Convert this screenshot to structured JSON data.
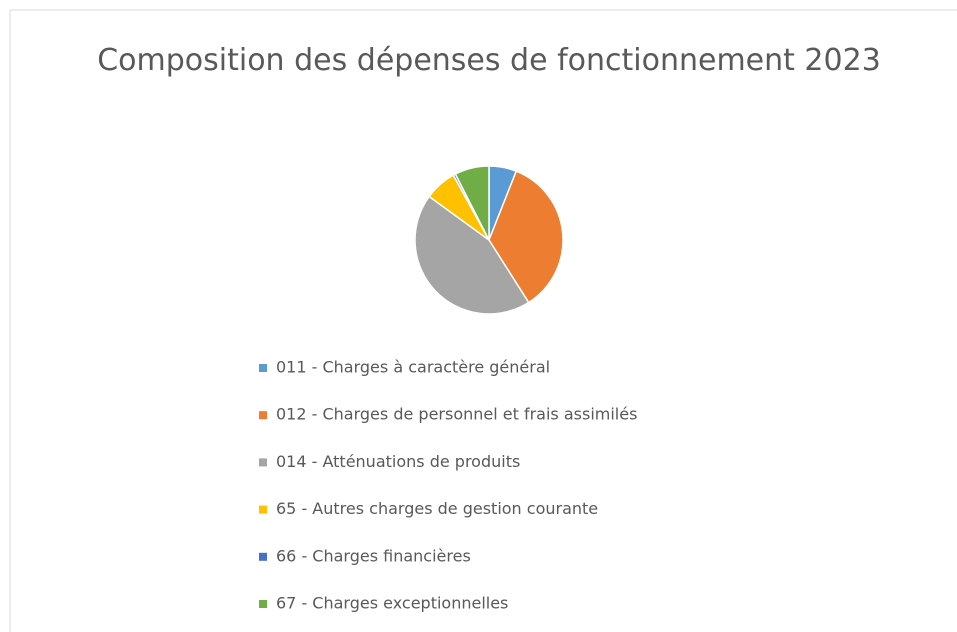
{
  "chart_data": {
    "type": "pie",
    "title": "Composition des dépenses de fonctionnement 2023",
    "categories": [
      "011 - Charges à caractère général",
      "012 - Charges de personnel et frais assimilés",
      "014 - Atténuations de produits",
      "65 - Autres charges de gestion courante",
      "66 - Charges financières",
      "67 - Charges exceptionnelles"
    ],
    "values": [
      6,
      35,
      44,
      7,
      0.5,
      7.5
    ],
    "colors": [
      "#5b9bd5",
      "#ed7d31",
      "#a5a5a5",
      "#ffc000",
      "#4472c4",
      "#70ad47"
    ],
    "legend": "bottom"
  }
}
